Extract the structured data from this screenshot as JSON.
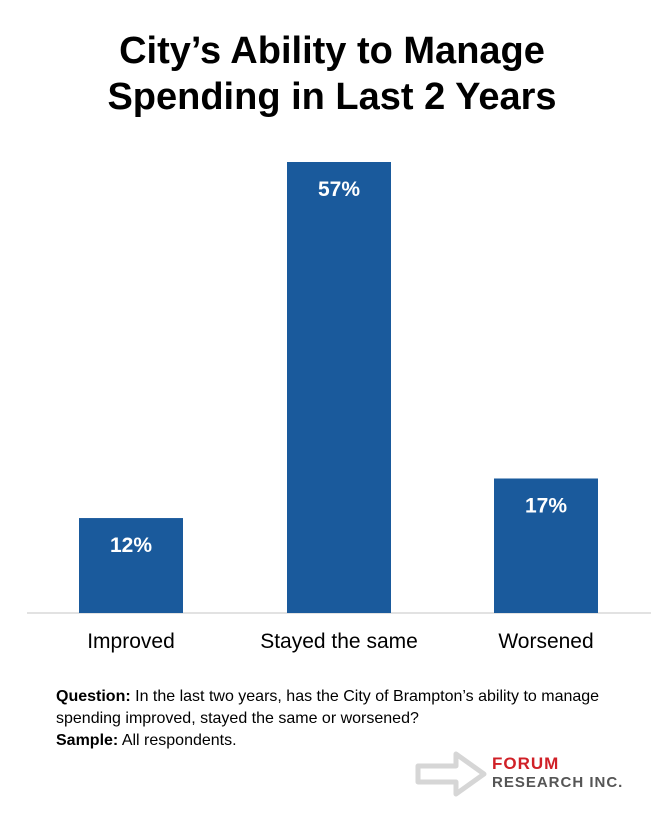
{
  "chart_data": {
    "type": "bar",
    "title_line1": "City’s Ability to Manage",
    "title_line2": "Spending in Last 2 Years",
    "categories": [
      "Improved",
      "Stayed the same",
      "Worsened"
    ],
    "values": [
      12,
      57,
      17
    ],
    "value_labels": [
      "12%",
      "57%",
      "17%"
    ],
    "ylim": [
      0,
      57
    ],
    "grid": false,
    "legend": "none",
    "bar_color": "#1a5a9c"
  },
  "note": {
    "question_label": "Question:",
    "question_text": " In the last two years, has the City of Brampton’s ability to manage spending improved, stayed the same or worsened?",
    "sample_label": "Sample:",
    "sample_text": " All respondents."
  },
  "logo": {
    "line1": "FORUM",
    "line2": "RESEARCH INC.",
    "icon": "arrow-outline-icon"
  }
}
